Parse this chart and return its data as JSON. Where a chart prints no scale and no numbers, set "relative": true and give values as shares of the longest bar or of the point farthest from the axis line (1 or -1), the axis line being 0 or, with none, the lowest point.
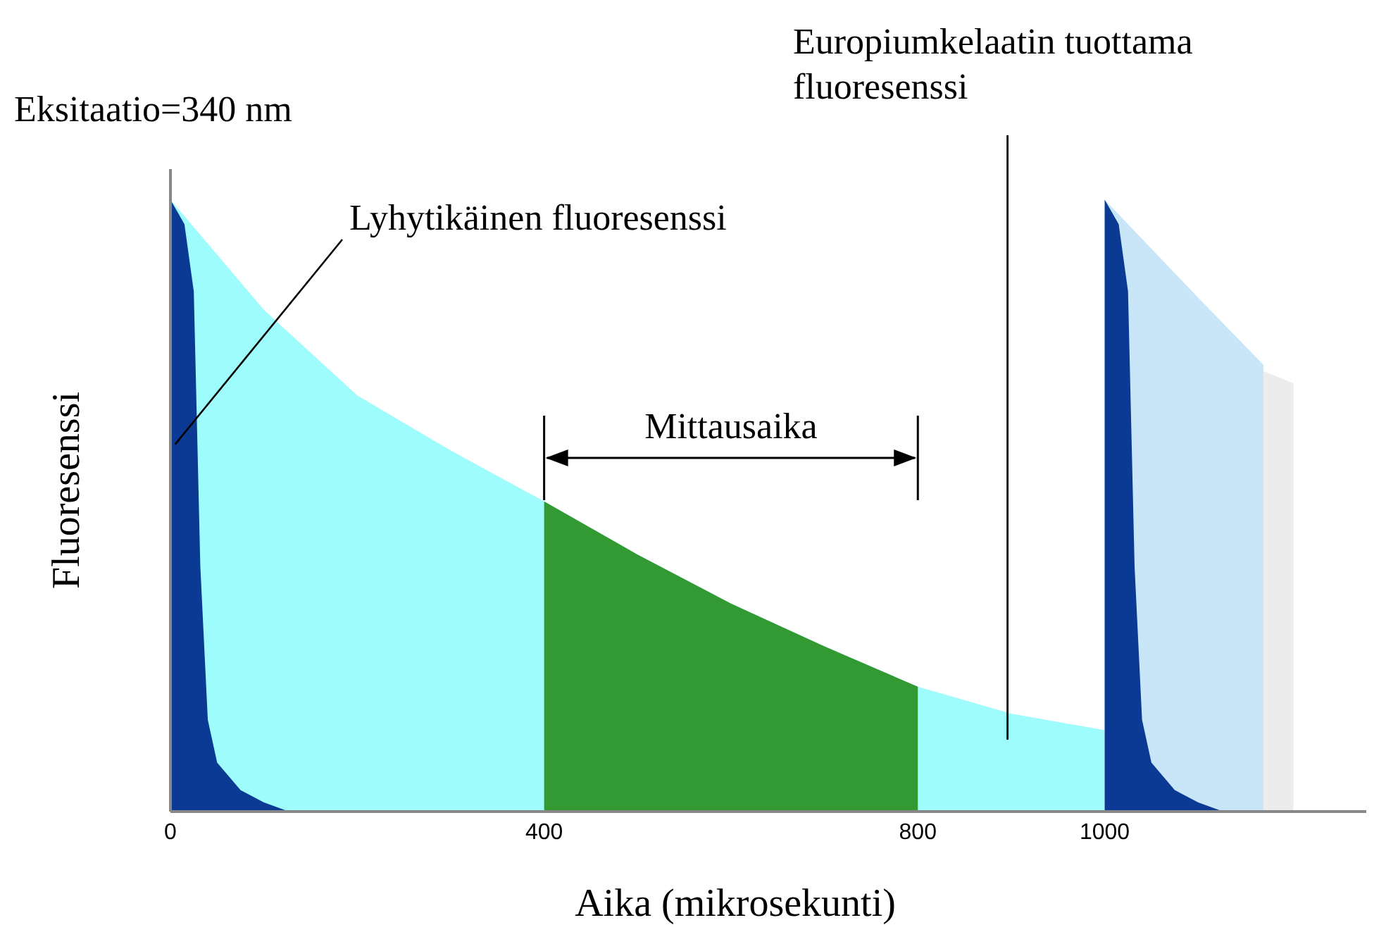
{
  "chart_data": {
    "type": "area",
    "relative": true,
    "xlabel": "Aika (mikrosekunti)",
    "ylabel": "Fluoresenssi",
    "xlim": [
      0,
      1280
    ],
    "xticks": [
      0,
      400,
      800,
      1000
    ],
    "series": [
      {
        "color": "#9ffcfc",
        "x": [
          0,
          100,
          200,
          300,
          400,
          500,
          600,
          700,
          800,
          900,
          1000
        ],
        "values": [
          1.0,
          0.82,
          0.68,
          0.59,
          0.507,
          0.42,
          0.34,
          0.27,
          0.204,
          0.16,
          0.133
        ]
      },
      {
        "color": "#339933",
        "x": [
          400,
          500,
          600,
          700,
          800
        ],
        "values": [
          0.507,
          0.42,
          0.34,
          0.27,
          0.204
        ]
      },
      {
        "color": "#c8e6f8",
        "x": [
          1000,
          1050,
          1100,
          1170
        ],
        "values": [
          1.0,
          0.92,
          0.84,
          0.73
        ]
      },
      {
        "color": "#ececec",
        "x": [
          1170,
          1202
        ],
        "values": [
          0.72,
          0.7
        ]
      },
      {
        "color": "#0a3a94",
        "x": [
          0,
          15,
          25,
          32,
          40,
          50,
          75,
          100,
          127
        ],
        "values": [
          1.0,
          0.96,
          0.85,
          0.4,
          0.15,
          0.08,
          0.035,
          0.015,
          0
        ]
      },
      {
        "color": "#0a3a94",
        "x": [
          1000,
          1015,
          1025,
          1032,
          1040,
          1050,
          1075,
          1100,
          1127
        ],
        "values": [
          1.0,
          0.96,
          0.85,
          0.4,
          0.15,
          0.08,
          0.035,
          0.015,
          0
        ]
      }
    ],
    "annotations": [
      "Eksitaatio=340 nm",
      {
        "text": "Lyhytikäinen fluoresenssi",
        "x": 5,
        "y": 0.6
      },
      "Mittausaika"
    ],
    "ref_lines": [
      {
        "axis": "x",
        "value": 896,
        "label": "Europiumkelaatin tuottama fluoresenssi",
        "color": "#000000"
      }
    ]
  }
}
